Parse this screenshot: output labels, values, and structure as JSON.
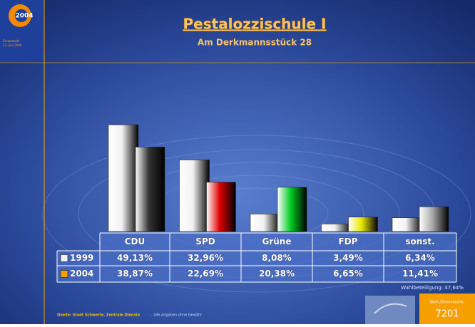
{
  "header": {
    "logo": "2004",
    "logo_caption": [
      "Europawahl",
      "13. Juni 2004"
    ],
    "title": "Pestalozzischule I",
    "subtitle": "Am Derkmannsstück 28"
  },
  "chart_data": {
    "type": "bar",
    "categories": [
      "CDU",
      "SPD",
      "Grüne",
      "FDP",
      "sonst."
    ],
    "series": [
      {
        "name": "1999",
        "color": "#f2f2f2",
        "colors": [
          "#f2f2f2",
          "#f2f2f2",
          "#f2f2f2",
          "#f2f2f2",
          "#f2f2f2"
        ],
        "values": [
          49.13,
          32.96,
          8.08,
          3.49,
          6.34
        ],
        "value_labels": [
          "49,13%",
          "32,96%",
          "8,08%",
          "3,49%",
          "6,34%"
        ]
      },
      {
        "name": "2004",
        "color": "#f5a000",
        "colors": [
          "#333333",
          "#e00000",
          "#00cc22",
          "#e8e800",
          "#a8a8a8"
        ],
        "values": [
          38.87,
          22.69,
          20.38,
          6.65,
          11.41
        ],
        "value_labels": [
          "38,87%",
          "22,69%",
          "20,38%",
          "6,65%",
          "11,41%"
        ]
      }
    ]
  },
  "footer": {
    "turnout": "Wahlbeteiligung: 47,64%",
    "source": "Quelle: Stadt Schwerte, Zentrale Dienste",
    "disclaimer": "- alle Angaben ohne Gewähr",
    "district_label": "Wahl-/Stimmbezirk:",
    "district": "7201"
  }
}
